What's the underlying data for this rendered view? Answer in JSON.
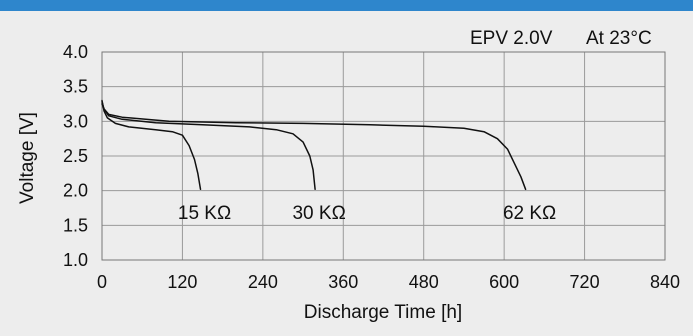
{
  "chart_data": {
    "type": "line",
    "annotation_left": "EPV 2.0V",
    "annotation_right": "At 23°C",
    "xlabel": "Discharge Time [h]",
    "ylabel": "Voltage [V]",
    "xlim": [
      0,
      840
    ],
    "ylim": [
      1.0,
      4.0
    ],
    "x_ticks": [
      0,
      120,
      240,
      360,
      480,
      600,
      720,
      840
    ],
    "y_ticks": [
      "1.0",
      "1.5",
      "2.0",
      "2.5",
      "3.0",
      "3.5",
      "4.0"
    ],
    "grid": true,
    "series": [
      {
        "name": "15 KΩ",
        "points": [
          [
            0,
            3.3
          ],
          [
            3,
            3.15
          ],
          [
            8,
            3.05
          ],
          [
            20,
            2.97
          ],
          [
            40,
            2.92
          ],
          [
            80,
            2.88
          ],
          [
            105,
            2.85
          ],
          [
            120,
            2.8
          ],
          [
            130,
            2.65
          ],
          [
            138,
            2.45
          ],
          [
            143,
            2.25
          ],
          [
            147,
            2.02
          ]
        ]
      },
      {
        "name": "30 KΩ",
        "points": [
          [
            0,
            3.28
          ],
          [
            3,
            3.18
          ],
          [
            10,
            3.08
          ],
          [
            30,
            3.03
          ],
          [
            80,
            2.98
          ],
          [
            150,
            2.95
          ],
          [
            220,
            2.92
          ],
          [
            260,
            2.88
          ],
          [
            285,
            2.82
          ],
          [
            300,
            2.7
          ],
          [
            310,
            2.5
          ],
          [
            315,
            2.3
          ],
          [
            318,
            2.02
          ]
        ]
      },
      {
        "name": "62 KΩ",
        "points": [
          [
            0,
            3.25
          ],
          [
            3,
            3.18
          ],
          [
            10,
            3.1
          ],
          [
            30,
            3.06
          ],
          [
            100,
            3.0
          ],
          [
            200,
            2.98
          ],
          [
            300,
            2.97
          ],
          [
            400,
            2.95
          ],
          [
            480,
            2.93
          ],
          [
            540,
            2.9
          ],
          [
            570,
            2.85
          ],
          [
            590,
            2.75
          ],
          [
            605,
            2.6
          ],
          [
            615,
            2.4
          ],
          [
            625,
            2.2
          ],
          [
            632,
            2.02
          ]
        ]
      }
    ]
  }
}
